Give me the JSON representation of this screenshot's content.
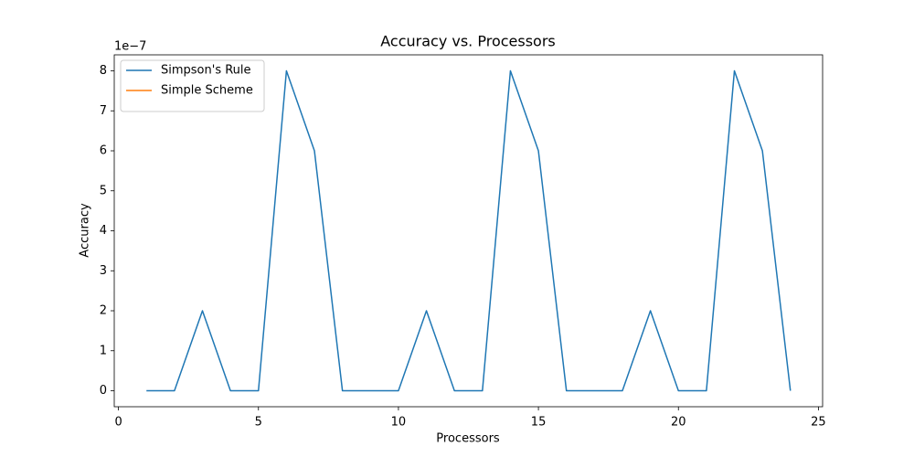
{
  "chart_data": {
    "type": "line",
    "title": "Accuracy vs. Processors",
    "xlabel": "Processors",
    "ylabel": "Accuracy",
    "y_offset_label": "1e−7",
    "x": [
      1,
      2,
      3,
      4,
      5,
      6,
      7,
      8,
      9,
      10,
      11,
      12,
      13,
      14,
      15,
      16,
      17,
      18,
      19,
      20,
      21,
      22,
      23,
      24
    ],
    "series": [
      {
        "name": "Simpson's Rule",
        "color": "#1f77b4",
        "values": [
          0,
          0,
          2,
          0,
          0,
          8,
          6,
          0,
          0,
          0,
          2,
          0,
          0,
          8,
          6,
          0,
          0,
          0,
          2,
          0,
          0,
          8,
          6,
          0
        ]
      },
      {
        "name": "Simple Scheme",
        "color": "#ff7f0e",
        "values": [
          null,
          null,
          null,
          null,
          null,
          null,
          null,
          null,
          null,
          null,
          null,
          null,
          null,
          null,
          null,
          null,
          null,
          null,
          null,
          null,
          null,
          null,
          null,
          null
        ]
      }
    ],
    "xlim": [
      -0.15,
      25.15
    ],
    "ylim": [
      -0.4,
      8.4
    ],
    "xticks": [
      0,
      5,
      10,
      15,
      20,
      25
    ],
    "yticks": [
      0,
      1,
      2,
      3,
      4,
      5,
      6,
      7,
      8
    ],
    "legend": "upper left",
    "grid": false
  }
}
